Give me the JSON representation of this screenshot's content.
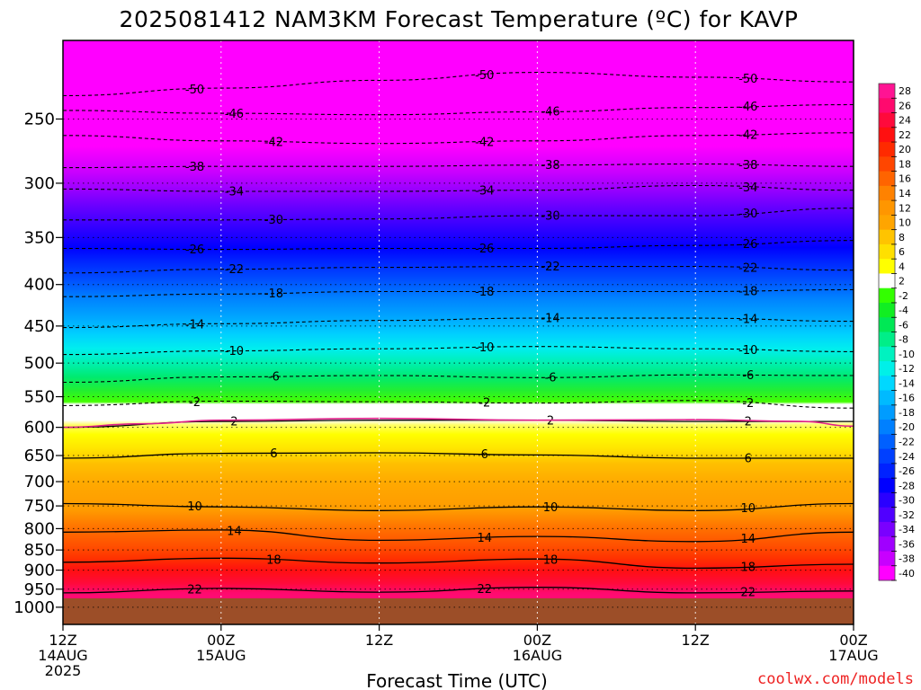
{
  "chart_data": {
    "type": "heatmap",
    "title": "2025081412 NAM3KM Forecast Temperature (ºC) for KAVP",
    "xlabel": "Forecast Time (UTC)",
    "ylabel": "",
    "credit": "coolwx.com/models",
    "x_ticks": [
      {
        "hour": 0,
        "time": "12Z",
        "date": "14AUG",
        "year": "2025"
      },
      {
        "hour": 12,
        "time": "00Z",
        "date": "15AUG",
        "year": ""
      },
      {
        "hour": 24,
        "time": "12Z",
        "date": "",
        "year": ""
      },
      {
        "hour": 36,
        "time": "00Z",
        "date": "16AUG",
        "year": ""
      },
      {
        "hour": 48,
        "time": "12Z",
        "date": "",
        "year": ""
      },
      {
        "hour": 60,
        "time": "00Z",
        "date": "17AUG",
        "year": ""
      }
    ],
    "y_axis": {
      "scale": "log-pressure",
      "units": "hPa",
      "range": [
        1050,
        200
      ],
      "ticks": [
        250,
        300,
        350,
        400,
        450,
        500,
        550,
        600,
        650,
        700,
        750,
        800,
        850,
        900,
        950,
        1000
      ]
    },
    "x_range_hours": [
      0,
      60
    ],
    "surface_pressure_hpa": 975,
    "colorbar": {
      "labels": [
        "28",
        "26",
        "24",
        "22",
        "20",
        "18",
        "16",
        "14",
        "12",
        "10",
        "8",
        "6",
        "4",
        "2",
        "-2",
        "-4",
        "-6",
        "-8",
        "-10",
        "-12",
        "-14",
        "-16",
        "-18",
        "-20",
        "-22",
        "-24",
        "-26",
        "-28",
        "-30",
        "-32",
        "-34",
        "-36",
        "-38",
        "-40"
      ],
      "colors": [
        "#ff1493",
        "#ff0a6e",
        "#ff0a3c",
        "#ff1010",
        "#ff2a00",
        "#ff4600",
        "#ff6400",
        "#ff8200",
        "#ff9600",
        "#ffa500",
        "#ffc400",
        "#ffe000",
        "#ffff00",
        "#ffffff",
        "#33ff00",
        "#11ee22",
        "#00e855",
        "#00ee88",
        "#00f2c0",
        "#00f0e8",
        "#00d8ff",
        "#00baff",
        "#009cff",
        "#0080ff",
        "#0060ff",
        "#0040ff",
        "#0022ff",
        "#0000ff",
        "#2a00ff",
        "#5000ff",
        "#7a00ff",
        "#a000ff",
        "#c800ff",
        "#ff00ff"
      ]
    },
    "series": [
      {
        "level": -50,
        "points": [
          [
            0,
            234
          ],
          [
            12,
            229
          ],
          [
            24,
            224
          ],
          [
            36,
            219
          ],
          [
            48,
            222
          ],
          [
            60,
            225
          ]
        ]
      },
      {
        "level": -46,
        "points": [
          [
            0,
            244
          ],
          [
            12,
            246
          ],
          [
            24,
            247
          ],
          [
            36,
            245
          ],
          [
            48,
            242
          ],
          [
            60,
            240
          ]
        ]
      },
      {
        "level": -42,
        "points": [
          [
            0,
            262
          ],
          [
            12,
            266
          ],
          [
            24,
            268
          ],
          [
            36,
            266
          ],
          [
            48,
            262
          ],
          [
            60,
            260
          ]
        ]
      },
      {
        "level": -38,
        "points": [
          [
            0,
            287
          ],
          [
            12,
            286
          ],
          [
            24,
            286
          ],
          [
            36,
            285
          ],
          [
            48,
            284
          ],
          [
            60,
            286
          ]
        ]
      },
      {
        "level": -34,
        "points": [
          [
            0,
            305
          ],
          [
            12,
            307
          ],
          [
            24,
            307
          ],
          [
            36,
            306
          ],
          [
            48,
            302
          ],
          [
            60,
            306
          ]
        ]
      },
      {
        "level": -30,
        "points": [
          [
            0,
            333
          ],
          [
            12,
            333
          ],
          [
            24,
            332
          ],
          [
            36,
            329
          ],
          [
            48,
            329
          ],
          [
            60,
            322
          ]
        ]
      },
      {
        "level": -26,
        "points": [
          [
            0,
            361
          ],
          [
            12,
            362
          ],
          [
            24,
            361
          ],
          [
            36,
            361
          ],
          [
            48,
            358
          ],
          [
            60,
            353
          ]
        ]
      },
      {
        "level": -22,
        "points": [
          [
            0,
            387
          ],
          [
            12,
            383
          ],
          [
            24,
            381
          ],
          [
            36,
            380
          ],
          [
            48,
            380
          ],
          [
            60,
            384
          ]
        ]
      },
      {
        "level": -18,
        "points": [
          [
            0,
            414
          ],
          [
            12,
            411
          ],
          [
            24,
            408
          ],
          [
            36,
            408
          ],
          [
            48,
            408
          ],
          [
            60,
            406
          ]
        ]
      },
      {
        "level": -14,
        "points": [
          [
            0,
            452
          ],
          [
            12,
            447
          ],
          [
            24,
            443
          ],
          [
            36,
            440
          ],
          [
            48,
            440
          ],
          [
            60,
            444
          ]
        ]
      },
      {
        "level": -10,
        "points": [
          [
            0,
            488
          ],
          [
            12,
            483
          ],
          [
            24,
            480
          ],
          [
            36,
            477
          ],
          [
            48,
            480
          ],
          [
            60,
            484
          ]
        ]
      },
      {
        "level": -6,
        "points": [
          [
            0,
            528
          ],
          [
            12,
            520
          ],
          [
            24,
            518
          ],
          [
            36,
            521
          ],
          [
            48,
            517
          ],
          [
            60,
            518
          ]
        ]
      },
      {
        "level": -2,
        "points": [
          [
            0,
            564
          ],
          [
            12,
            557
          ],
          [
            24,
            558
          ],
          [
            36,
            560
          ],
          [
            48,
            556
          ],
          [
            60,
            568
          ]
        ]
      }
    ],
    "solid_contours": [
      {
        "level": 2,
        "points": [
          [
            0,
            600
          ],
          [
            12,
            590
          ],
          [
            24,
            588
          ],
          [
            36,
            588
          ],
          [
            48,
            590
          ],
          [
            60,
            590
          ]
        ]
      },
      {
        "level": 6,
        "points": [
          [
            0,
            655
          ],
          [
            12,
            646
          ],
          [
            24,
            645
          ],
          [
            36,
            649
          ],
          [
            48,
            655
          ],
          [
            60,
            655
          ]
        ]
      },
      {
        "level": 10,
        "points": [
          [
            0,
            745
          ],
          [
            12,
            752
          ],
          [
            24,
            760
          ],
          [
            36,
            752
          ],
          [
            48,
            760
          ],
          [
            60,
            745
          ]
        ]
      },
      {
        "level": 14,
        "points": [
          [
            0,
            808
          ],
          [
            12,
            803
          ],
          [
            24,
            827
          ],
          [
            36,
            818
          ],
          [
            48,
            830
          ],
          [
            60,
            808
          ]
        ]
      },
      {
        "level": 18,
        "points": [
          [
            0,
            880
          ],
          [
            12,
            870
          ],
          [
            24,
            882
          ],
          [
            36,
            872
          ],
          [
            48,
            895
          ],
          [
            60,
            885
          ]
        ]
      },
      {
        "level": 22,
        "points": [
          [
            0,
            960
          ],
          [
            12,
            948
          ],
          [
            24,
            958
          ],
          [
            36,
            945
          ],
          [
            48,
            960
          ],
          [
            60,
            955
          ]
        ]
      }
    ],
    "freezing_line": {
      "level": 0,
      "points": [
        [
          0,
          600
        ],
        [
          6,
          594
        ],
        [
          12,
          588
        ],
        [
          24,
          585
        ],
        [
          36,
          588
        ],
        [
          48,
          587
        ],
        [
          56,
          590
        ],
        [
          60,
          598
        ]
      ]
    }
  }
}
